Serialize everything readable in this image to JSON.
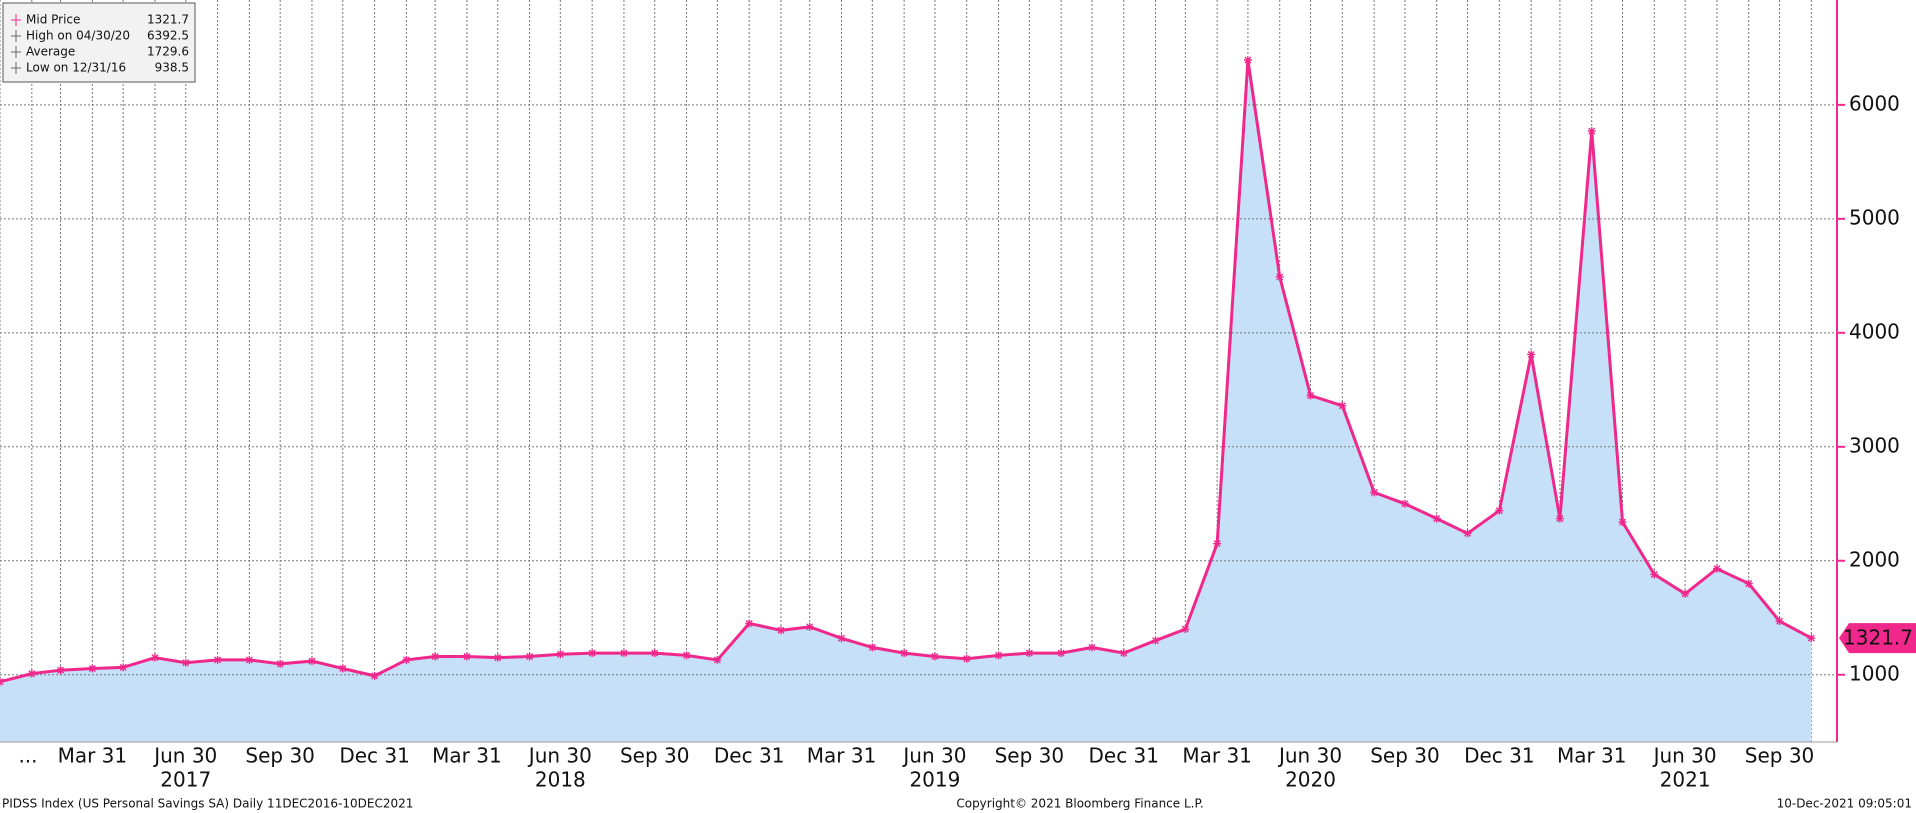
{
  "chart_data": {
    "type": "area-line",
    "legend": {
      "entries": [
        {
          "label": "Mid Price"
        },
        {
          "label": "High on 04/30/20"
        },
        {
          "label": "Average",
          "value": 1729.6
        },
        {
          "label": "Low on 12/31/16"
        }
      ]
    },
    "x": [
      "2016-12-31",
      "2017-01-31",
      "2017-02-28",
      "2017-03-31",
      "2017-04-30",
      "2017-05-31",
      "2017-06-30",
      "2017-07-31",
      "2017-08-31",
      "2017-09-30",
      "2017-10-31",
      "2017-11-30",
      "2017-12-31",
      "2018-01-31",
      "2018-02-28",
      "2018-03-31",
      "2018-04-30",
      "2018-05-31",
      "2018-06-30",
      "2018-07-31",
      "2018-08-31",
      "2018-09-30",
      "2018-10-31",
      "2018-11-30",
      "2018-12-31",
      "2019-01-31",
      "2019-02-28",
      "2019-03-31",
      "2019-04-30",
      "2019-05-31",
      "2019-06-30",
      "2019-07-31",
      "2019-08-31",
      "2019-09-30",
      "2019-10-31",
      "2019-11-30",
      "2019-12-31",
      "2020-01-31",
      "2020-02-29",
      "2020-03-31",
      "2020-04-30",
      "2020-05-31",
      "2020-06-30",
      "2020-07-31",
      "2020-08-31",
      "2020-09-30",
      "2020-10-31",
      "2020-11-30",
      "2020-12-31",
      "2021-01-31",
      "2021-02-28",
      "2021-03-31",
      "2021-04-30",
      "2021-05-31",
      "2021-06-30",
      "2021-07-31",
      "2021-08-31",
      "2021-09-30",
      "2021-10-31"
    ],
    "series": [
      {
        "name": "Mid Price",
        "color": "#f0288c",
        "fill": "#c6e0f8",
        "values": [
          938.5,
          1010,
          1040,
          1055,
          1065,
          1150,
          1105,
          1130,
          1130,
          1095,
          1120,
          1055,
          990,
          1130,
          1160,
          1160,
          1150,
          1160,
          1180,
          1190,
          1190,
          1190,
          1170,
          1130,
          1450,
          1390,
          1420,
          1320,
          1240,
          1190,
          1160,
          1140,
          1170,
          1190,
          1190,
          1240,
          1190,
          1300,
          1400,
          2150,
          6392.5,
          4490,
          3450,
          3360,
          2600,
          2500,
          2370,
          2240,
          2440,
          3810,
          2370,
          5770,
          2340,
          1880,
          1710,
          1930,
          1800,
          1470,
          1321.7
        ]
      }
    ],
    "xlim": [
      "2016-12-31",
      "2021-11-25"
    ],
    "xticks": [
      {
        "value": "2016-12-31",
        "label": "..."
      },
      {
        "value": "2017-03-31",
        "label": "Mar 31"
      },
      {
        "value": "2017-06-30",
        "label": "Jun 30"
      },
      {
        "value": "2017-09-30",
        "label": "Sep 30"
      },
      {
        "value": "2017-12-31",
        "label": "Dec 31"
      },
      {
        "value": "2018-03-31",
        "label": "Mar 31"
      },
      {
        "value": "2018-06-30",
        "label": "Jun 30"
      },
      {
        "value": "2018-09-30",
        "label": "Sep 30"
      },
      {
        "value": "2018-12-31",
        "label": "Dec 31"
      },
      {
        "value": "2019-03-31",
        "label": "Mar 31"
      },
      {
        "value": "2019-06-30",
        "label": "Jun 30"
      },
      {
        "value": "2019-09-30",
        "label": "Sep 30"
      },
      {
        "value": "2019-12-31",
        "label": "Dec 31"
      },
      {
        "value": "2020-03-31",
        "label": "Mar 31"
      },
      {
        "value": "2020-06-30",
        "label": "Jun 30"
      },
      {
        "value": "2020-09-30",
        "label": "Sep 30"
      },
      {
        "value": "2020-12-31",
        "label": "Dec 31"
      },
      {
        "value": "2021-03-31",
        "label": "Mar 31"
      },
      {
        "value": "2021-06-30",
        "label": "Jun 30"
      },
      {
        "value": "2021-09-30",
        "label": "Sep 30"
      }
    ],
    "year_labels": [
      {
        "value": "2017-06-30",
        "label": "2017"
      },
      {
        "value": "2018-06-30",
        "label": "2018"
      },
      {
        "value": "2019-06-30",
        "label": "2019"
      },
      {
        "value": "2020-06-30",
        "label": "2020"
      },
      {
        "value": "2021-06-30",
        "label": "2021"
      }
    ],
    "ylim": [
      410,
      6920
    ],
    "yticks": [
      1000,
      2000,
      3000,
      4000,
      5000,
      6000
    ],
    "grid": true,
    "footer": {
      "left": "PIDSS Index (US Personal Savings SA)  Daily 11DEC2016-10DEC2021",
      "center": "Copyright© 2021 Bloomberg Finance L.P.",
      "right": "10-Dec-2021 09:05:01"
    }
  }
}
